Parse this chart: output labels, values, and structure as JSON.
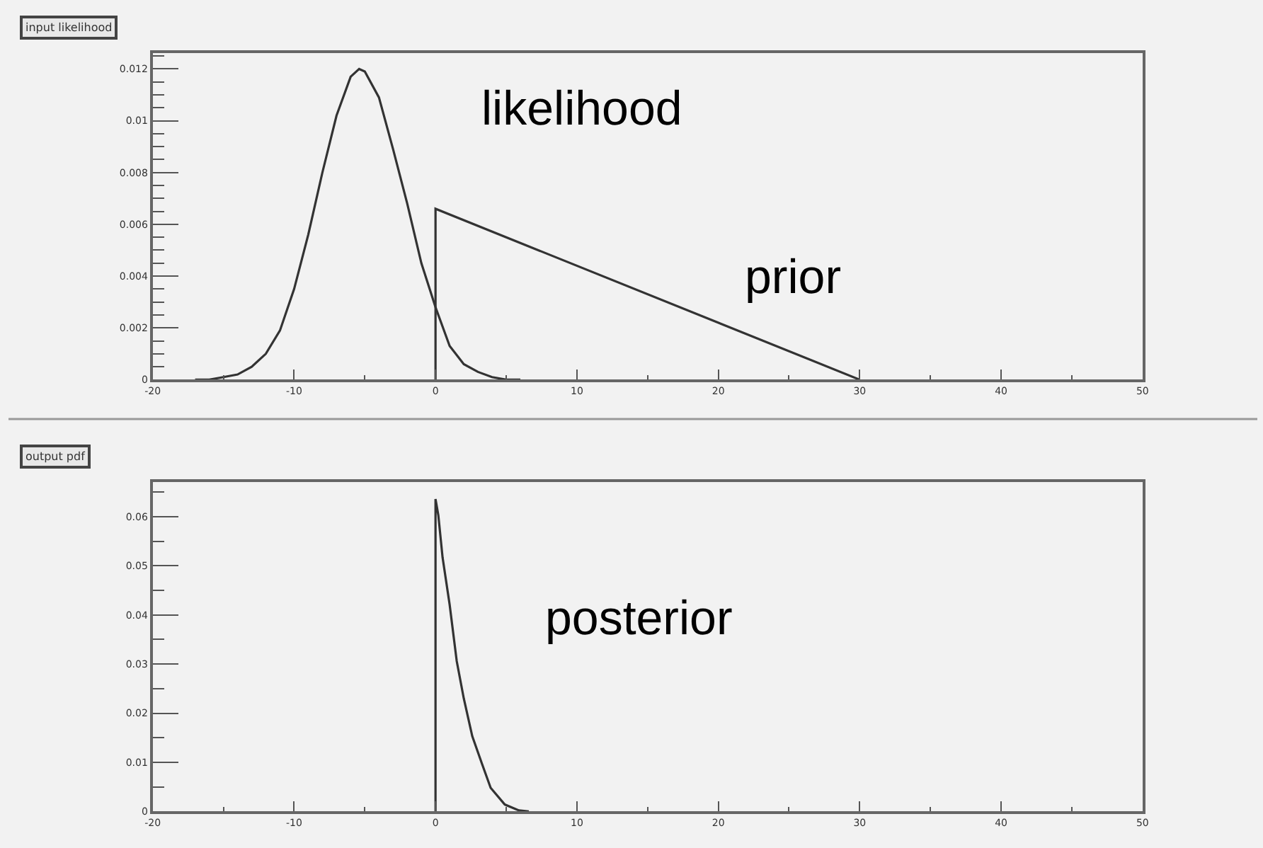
{
  "chart_data": [
    {
      "type": "line",
      "title": "input likelihood",
      "xlim": [
        -20,
        50
      ],
      "xticks": [
        -20,
        -10,
        0,
        10,
        20,
        30,
        40,
        50
      ],
      "ylim": [
        0,
        0.0126
      ],
      "yticks": [
        0,
        0.002,
        0.004,
        0.006,
        0.008,
        0.01,
        0.012
      ],
      "grid": false,
      "series": [
        {
          "color": "#333333",
          "x": [
            -17,
            -16,
            -15,
            -14,
            -13,
            -12,
            -11,
            -10,
            -9,
            -8,
            -7,
            -6,
            -5.4,
            -5,
            -4,
            -3,
            -2,
            -1,
            0,
            1,
            2,
            3,
            4,
            5,
            6
          ],
          "values": [
            0,
            0,
            0.0001,
            0.0002,
            0.0005,
            0.001,
            0.0019,
            0.0035,
            0.0056,
            0.008,
            0.0102,
            0.0117,
            0.012,
            0.0119,
            0.0109,
            0.0089,
            0.0068,
            0.0045,
            0.0028,
            0.0013,
            0.0006,
            0.0003,
            0.0001,
            0,
            0
          ]
        },
        {
          "color": "#333333",
          "x": [
            0,
            0,
            30
          ],
          "values": [
            0,
            0.0066,
            0
          ]
        }
      ],
      "annotations": [
        "likelihood",
        "prior"
      ]
    },
    {
      "type": "line",
      "title": "output pdf",
      "xlim": [
        -20,
        50
      ],
      "xticks": [
        -20,
        -10,
        0,
        10,
        20,
        30,
        40,
        50
      ],
      "ylim": [
        0,
        0.067
      ],
      "yticks": [
        0,
        0.01,
        0.02,
        0.03,
        0.04,
        0.05,
        0.06
      ],
      "grid": false,
      "series": [
        {
          "color": "#333333",
          "x": [
            0,
            0,
            0.2,
            0.5,
            1.0,
            1.5,
            2.0,
            2.6,
            3.3,
            3.9,
            4.9,
            5.9,
            6.6
          ],
          "values": [
            0,
            0.0636,
            0.0603,
            0.0517,
            0.0421,
            0.0306,
            0.023,
            0.0153,
            0.0096,
            0.0048,
            0.0014,
            0.0002,
            0
          ]
        }
      ],
      "annotations": [
        "posterior"
      ]
    }
  ]
}
